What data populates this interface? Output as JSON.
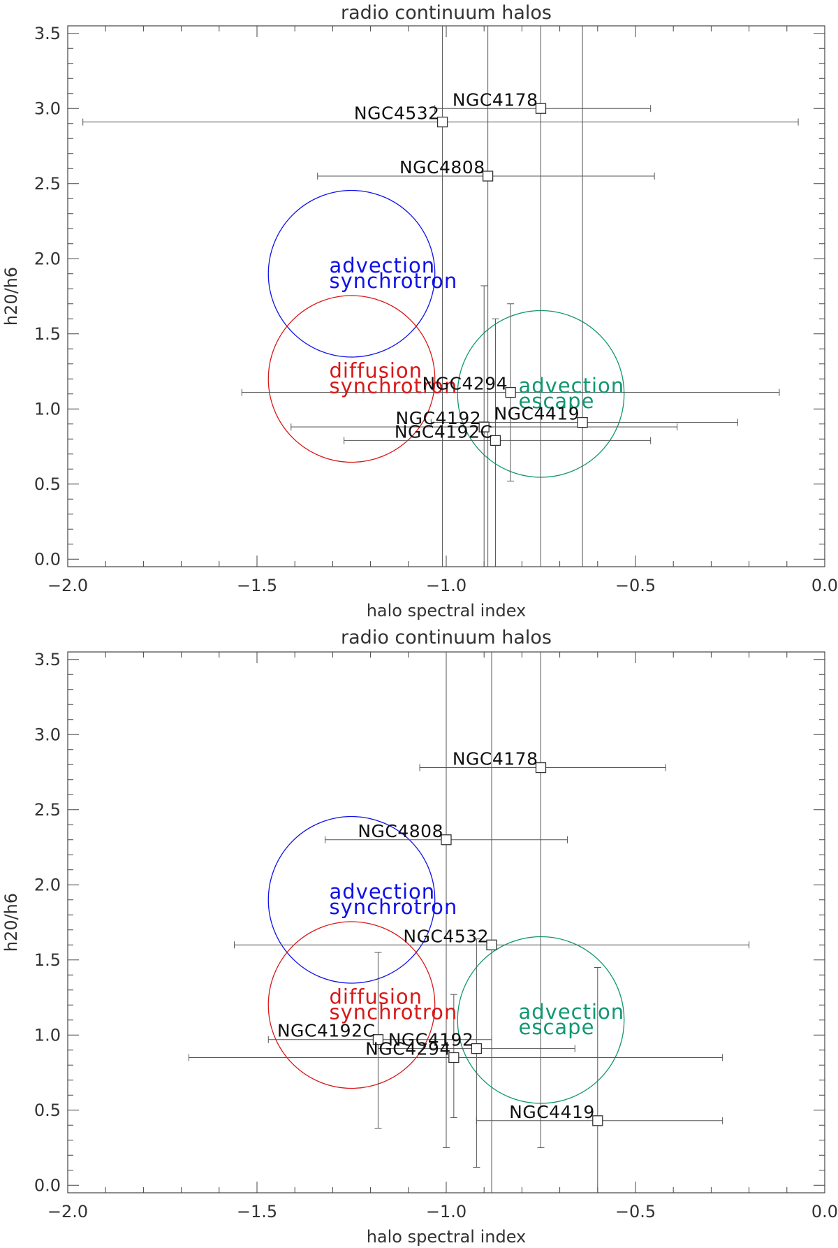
{
  "chart_data": [
    {
      "type": "scatter",
      "title": "radio continuum halos",
      "xlabel": "halo spectral index",
      "ylabel": "h20/h6",
      "xlim": [
        -2.0,
        0.0
      ],
      "ylim": [
        -0.05,
        3.55
      ],
      "xticks": [
        -2.0,
        -1.5,
        -1.0,
        -0.5,
        0.0
      ],
      "xtick_labels": [
        "−2.0",
        "−1.5",
        "−1.0",
        "−0.5",
        "0.0"
      ],
      "yticks": [
        0.0,
        0.5,
        1.0,
        1.5,
        2.0,
        2.5,
        3.0,
        3.5
      ],
      "ytick_labels": [
        "0.0",
        "0.5",
        "1.0",
        "1.5",
        "2.0",
        "2.5",
        "3.0",
        "3.5"
      ],
      "points": [
        {
          "name": "NGC4178",
          "x": -0.75,
          "y": 3.0,
          "xlo": -1.03,
          "xhi": -0.46,
          "ylo": -0.05,
          "yhi": 3.55
        },
        {
          "name": "NGC4532",
          "x": -1.01,
          "y": 2.91,
          "xlo": -1.96,
          "xhi": -0.07,
          "ylo": -0.05,
          "yhi": 3.55
        },
        {
          "name": "NGC4808",
          "x": -0.89,
          "y": 2.55,
          "xlo": -1.34,
          "xhi": -0.45,
          "ylo": -0.05,
          "yhi": 3.55
        },
        {
          "name": "NGC4294",
          "x": -0.83,
          "y": 1.11,
          "xlo": -1.54,
          "xhi": -0.12,
          "ylo": 0.52,
          "yhi": 1.7
        },
        {
          "name": "NGC4192",
          "x": -0.9,
          "y": 0.88,
          "xlo": -1.41,
          "xhi": -0.39,
          "ylo": -0.05,
          "yhi": 1.82
        },
        {
          "name": "NGC4419",
          "x": -0.64,
          "y": 0.91,
          "xlo": -1.04,
          "xhi": -0.23,
          "ylo": -0.05,
          "yhi": 3.55
        },
        {
          "name": "NGC4192C",
          "x": -0.87,
          "y": 0.79,
          "xlo": -1.27,
          "xhi": -0.46,
          "ylo": -0.05,
          "yhi": 1.6
        }
      ],
      "regions": [
        {
          "lines": [
            "advection",
            "synchrotron"
          ],
          "color": "#1010e8",
          "cx": -1.25,
          "cy": 1.9,
          "r": 0.44
        },
        {
          "lines": [
            "diffusion",
            "synchrotron"
          ],
          "color": "#d81818",
          "cx": -1.25,
          "cy": 1.2,
          "r": 0.44
        },
        {
          "lines": [
            "advection",
            "escape"
          ],
          "color": "#109870",
          "cx": -0.75,
          "cy": 1.1,
          "r": 0.44
        }
      ]
    },
    {
      "type": "scatter",
      "title": "radio continuum halos",
      "xlabel": "halo spectral index",
      "ylabel": "h20/h6",
      "xlim": [
        -2.0,
        0.0
      ],
      "ylim": [
        -0.05,
        3.55
      ],
      "xticks": [
        -2.0,
        -1.5,
        -1.0,
        -0.5,
        0.0
      ],
      "xtick_labels": [
        "−2.0",
        "−1.5",
        "−1.0",
        "−0.5",
        "0.0"
      ],
      "yticks": [
        0.0,
        0.5,
        1.0,
        1.5,
        2.0,
        2.5,
        3.0,
        3.5
      ],
      "ytick_labels": [
        "0.0",
        "0.5",
        "1.0",
        "1.5",
        "2.0",
        "2.5",
        "3.0",
        "3.5"
      ],
      "points": [
        {
          "name": "NGC4178",
          "x": -0.75,
          "y": 2.78,
          "xlo": -1.07,
          "xhi": -0.42,
          "ylo": 0.25,
          "yhi": 3.55
        },
        {
          "name": "NGC4808",
          "x": -1.0,
          "y": 2.3,
          "xlo": -1.32,
          "xhi": -0.68,
          "ylo": 0.25,
          "yhi": 3.55
        },
        {
          "name": "NGC4532",
          "x": -0.88,
          "y": 1.6,
          "xlo": -1.56,
          "xhi": -0.2,
          "ylo": -0.05,
          "yhi": 3.55
        },
        {
          "name": "NGC4192C",
          "x": -1.18,
          "y": 0.97,
          "xlo": -1.47,
          "xhi": -0.88,
          "ylo": 0.38,
          "yhi": 1.55
        },
        {
          "name": "NGC4192",
          "x": -0.92,
          "y": 0.91,
          "xlo": -1.18,
          "xhi": -0.66,
          "ylo": 0.12,
          "yhi": 1.64
        },
        {
          "name": "NGC4294",
          "x": -0.98,
          "y": 0.85,
          "xlo": -1.68,
          "xhi": -0.27,
          "ylo": 0.45,
          "yhi": 1.27
        },
        {
          "name": "NGC4419",
          "x": -0.6,
          "y": 0.43,
          "xlo": -0.92,
          "xhi": -0.27,
          "ylo": -0.05,
          "yhi": 1.45
        }
      ],
      "regions": [
        {
          "lines": [
            "advection",
            "synchrotron"
          ],
          "color": "#1010e8",
          "cx": -1.25,
          "cy": 1.9,
          "r": 0.44
        },
        {
          "lines": [
            "diffusion",
            "synchrotron"
          ],
          "color": "#d81818",
          "cx": -1.25,
          "cy": 1.2,
          "r": 0.44
        },
        {
          "lines": [
            "advection",
            "escape"
          ],
          "color": "#109870",
          "cx": -0.75,
          "cy": 1.1,
          "r": 0.44
        }
      ]
    }
  ]
}
